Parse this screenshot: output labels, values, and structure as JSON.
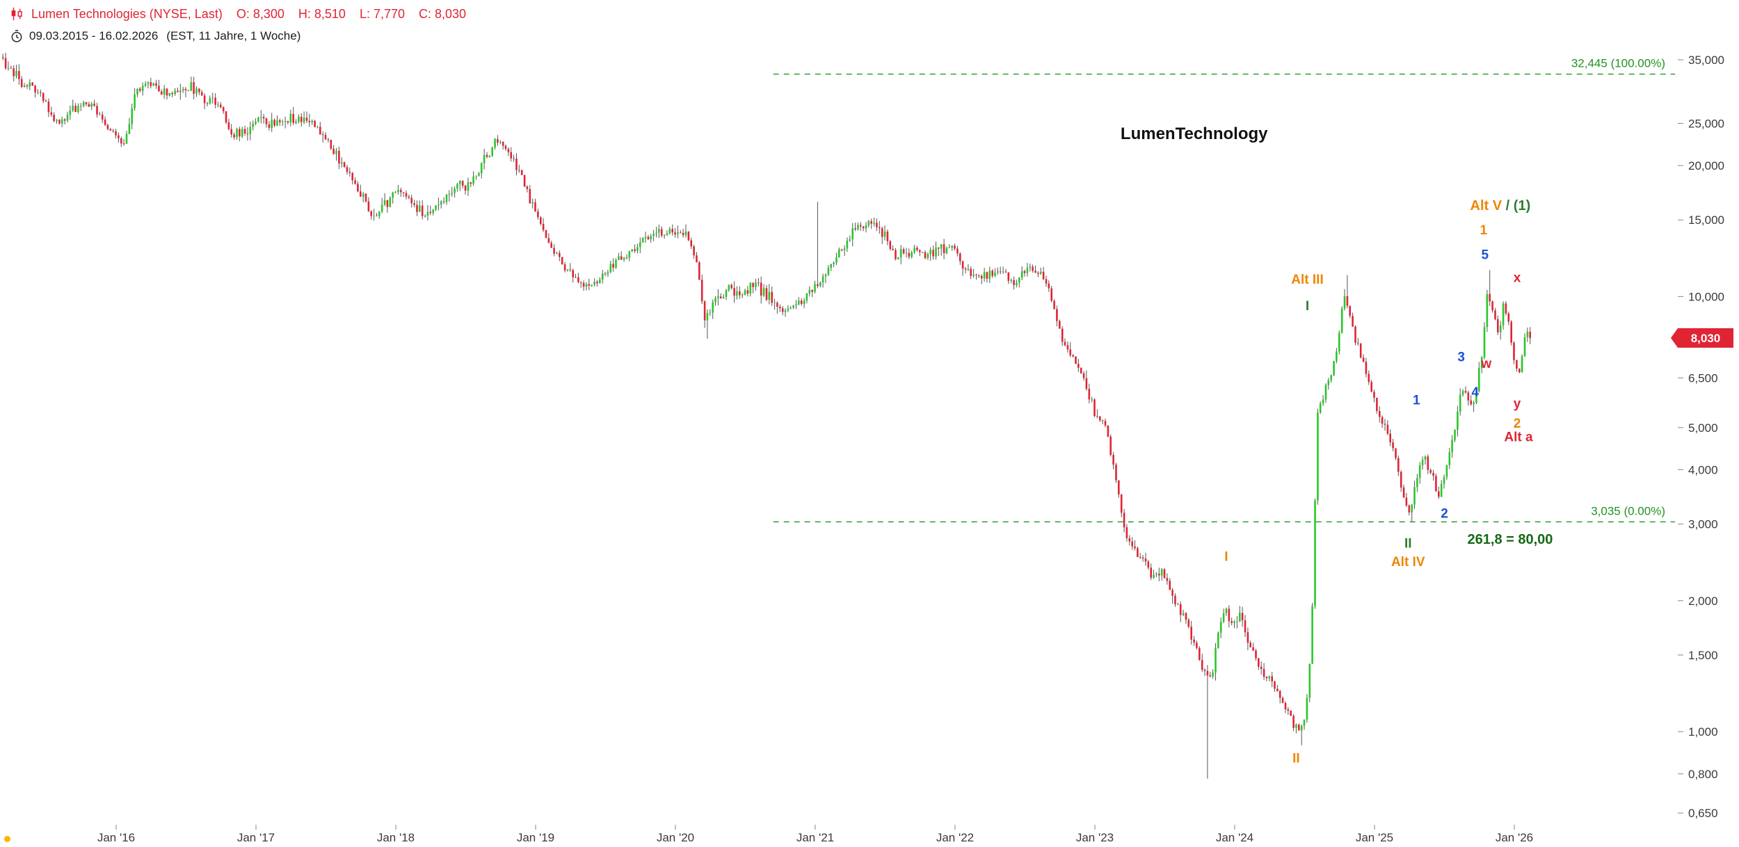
{
  "header": {
    "symbol_line": {
      "name": "Lumen Technologies (NYSE, Last)",
      "ohlc": [
        {
          "k": "O:",
          "v": "8,300"
        },
        {
          "k": "H:",
          "v": "8,510"
        },
        {
          "k": "L:",
          "v": "7,770"
        },
        {
          "k": "C:",
          "v": "8,030"
        }
      ]
    },
    "range_line": {
      "range": "09.03.2015 - 16.02.2026",
      "meta": "(EST, 11 Jahre, 1 Woche)"
    }
  },
  "colors": {
    "up": "#2bc62b",
    "down": "#e02433",
    "wick": "#555555",
    "orange": "#ef8505",
    "blue": "#1e4fd6",
    "red": "#e02433",
    "green": "#2e7d32",
    "darkgreen": "#156915",
    "fib_green": "#209320",
    "black": "#111111",
    "axis_text": "#3a3a3a",
    "badge_text": "#ffffff",
    "dot": "#ffb400"
  },
  "chart_data": {
    "type": "candlestick",
    "interval": "weekly",
    "title": "Lumen Technologies (NYSE)",
    "watermark": "LumenTechnology",
    "y_scale": "log",
    "x_axis": {
      "ticks": [
        {
          "label": "Jan '16",
          "t": 2016.0
        },
        {
          "label": "Jan '17",
          "t": 2017.0
        },
        {
          "label": "Jan '18",
          "t": 2018.0
        },
        {
          "label": "Jan '19",
          "t": 2019.0
        },
        {
          "label": "Jan '20",
          "t": 2020.0
        },
        {
          "label": "Jan '21",
          "t": 2021.0
        },
        {
          "label": "Jan '22",
          "t": 2022.0
        },
        {
          "label": "Jan '23",
          "t": 2023.0
        },
        {
          "label": "Jan '24",
          "t": 2024.0
        },
        {
          "label": "Jan '25",
          "t": 2025.0
        },
        {
          "label": "Jan '26",
          "t": 2026.0
        }
      ]
    },
    "y_axis": {
      "ticks": [
        {
          "label": "35,000",
          "value": 35.0
        },
        {
          "label": "25,000",
          "value": 25.0
        },
        {
          "label": "20,000",
          "value": 20.0
        },
        {
          "label": "15,000",
          "value": 15.0
        },
        {
          "label": "10,000",
          "value": 10.0
        },
        {
          "label": "6,500",
          "value": 6.5
        },
        {
          "label": "5,000",
          "value": 5.0
        },
        {
          "label": "4,000",
          "value": 4.0
        },
        {
          "label": "3,000",
          "value": 3.0
        },
        {
          "label": "2,000",
          "value": 2.0
        },
        {
          "label": "1,500",
          "value": 1.5
        },
        {
          "label": "1,000",
          "value": 1.0
        },
        {
          "label": "0,800",
          "value": 0.8
        },
        {
          "label": "0,650",
          "value": 0.65
        }
      ]
    },
    "last": {
      "open": 8.3,
      "high": 8.51,
      "low": 7.77,
      "close": 8.03,
      "label": "8,030"
    },
    "fib_lines": [
      {
        "price": 32.445,
        "label": "32,445 (100.00%)",
        "t_start": 2020.7
      },
      {
        "price": 3.035,
        "label": "3,035 (0.00%)",
        "t_start": 2020.7
      }
    ],
    "keypoints": [
      [
        2015.19,
        35.5
      ],
      [
        2015.25,
        34.0
      ],
      [
        2015.32,
        31.5
      ],
      [
        2015.4,
        30.5
      ],
      [
        2015.5,
        28.5
      ],
      [
        2015.58,
        24.8
      ],
      [
        2015.67,
        26.5
      ],
      [
        2015.75,
        27.5
      ],
      [
        2015.83,
        28.0
      ],
      [
        2015.92,
        25.5
      ],
      [
        2016.0,
        23.5
      ],
      [
        2016.08,
        22.8
      ],
      [
        2016.17,
        30.0
      ],
      [
        2016.25,
        31.0
      ],
      [
        2016.33,
        30.0
      ],
      [
        2016.42,
        29.0
      ],
      [
        2016.55,
        30.5
      ],
      [
        2016.65,
        28.5
      ],
      [
        2016.78,
        27.5
      ],
      [
        2016.84,
        23.2
      ],
      [
        2016.95,
        24.3
      ],
      [
        2017.05,
        25.8
      ],
      [
        2017.15,
        24.5
      ],
      [
        2017.3,
        26.0
      ],
      [
        2017.42,
        25.0
      ],
      [
        2017.5,
        23.5
      ],
      [
        2017.58,
        21.5
      ],
      [
        2017.67,
        19.5
      ],
      [
        2017.75,
        18.0
      ],
      [
        2017.85,
        15.0
      ],
      [
        2017.95,
        16.3
      ],
      [
        2018.05,
        17.8
      ],
      [
        2018.15,
        16.3
      ],
      [
        2018.25,
        15.2
      ],
      [
        2018.35,
        16.5
      ],
      [
        2018.45,
        18.4
      ],
      [
        2018.55,
        18.0
      ],
      [
        2018.65,
        20.5
      ],
      [
        2018.75,
        23.3
      ],
      [
        2018.82,
        21.5
      ],
      [
        2018.9,
        19.5
      ],
      [
        2019.0,
        16.0
      ],
      [
        2019.1,
        13.5
      ],
      [
        2019.2,
        12.0
      ],
      [
        2019.3,
        11.0
      ],
      [
        2019.4,
        10.4
      ],
      [
        2019.5,
        11.2
      ],
      [
        2019.6,
        12.0
      ],
      [
        2019.7,
        12.6
      ],
      [
        2019.8,
        13.6
      ],
      [
        2019.9,
        14.0
      ],
      [
        2020.0,
        13.8
      ],
      [
        2020.1,
        14.2
      ],
      [
        2020.18,
        11.5
      ],
      [
        2020.23,
        8.9
      ],
      [
        2020.3,
        9.8
      ],
      [
        2020.4,
        10.4
      ],
      [
        2020.5,
        10.1
      ],
      [
        2020.6,
        10.7
      ],
      [
        2020.7,
        9.8
      ],
      [
        2020.8,
        9.2
      ],
      [
        2020.9,
        9.6
      ],
      [
        2021.0,
        10.3
      ],
      [
        2021.1,
        11.5
      ],
      [
        2021.2,
        12.8
      ],
      [
        2021.3,
        14.2
      ],
      [
        2021.4,
        14.9
      ],
      [
        2021.5,
        14.0
      ],
      [
        2021.6,
        12.3
      ],
      [
        2021.7,
        12.8
      ],
      [
        2021.8,
        12.3
      ],
      [
        2021.9,
        12.8
      ],
      [
        2022.0,
        13.0
      ],
      [
        2022.1,
        11.6
      ],
      [
        2022.2,
        11.0
      ],
      [
        2022.33,
        11.4
      ],
      [
        2022.45,
        10.8
      ],
      [
        2022.55,
        11.7
      ],
      [
        2022.63,
        11.3
      ],
      [
        2022.7,
        10.2
      ],
      [
        2022.78,
        8.0
      ],
      [
        2022.85,
        7.3
      ],
      [
        2022.95,
        6.4
      ],
      [
        2023.02,
        5.3
      ],
      [
        2023.1,
        5.0
      ],
      [
        2023.16,
        3.95
      ],
      [
        2023.22,
        3.0
      ],
      [
        2023.3,
        2.6
      ],
      [
        2023.4,
        2.35
      ],
      [
        2023.5,
        2.3
      ],
      [
        2023.58,
        2.0
      ],
      [
        2023.66,
        1.85
      ],
      [
        2023.73,
        1.6
      ],
      [
        2023.8,
        1.35
      ],
      [
        2023.85,
        1.3
      ],
      [
        2023.9,
        1.7
      ],
      [
        2023.95,
        1.92
      ],
      [
        2024.0,
        1.8
      ],
      [
        2024.06,
        1.86
      ],
      [
        2024.12,
        1.6
      ],
      [
        2024.2,
        1.4
      ],
      [
        2024.28,
        1.3
      ],
      [
        2024.36,
        1.18
      ],
      [
        2024.43,
        1.06
      ],
      [
        2024.48,
        0.99
      ],
      [
        2024.53,
        1.12
      ],
      [
        2024.57,
        1.7
      ],
      [
        2024.61,
        5.3
      ],
      [
        2024.65,
        5.9
      ],
      [
        2024.69,
        6.4
      ],
      [
        2024.73,
        7.0
      ],
      [
        2024.77,
        8.5
      ],
      [
        2024.8,
        10.3
      ],
      [
        2024.84,
        9.0
      ],
      [
        2024.88,
        8.0
      ],
      [
        2024.93,
        7.2
      ],
      [
        2024.98,
        6.4
      ],
      [
        2025.03,
        5.6
      ],
      [
        2025.08,
        5.1
      ],
      [
        2025.13,
        4.7
      ],
      [
        2025.18,
        4.1
      ],
      [
        2025.23,
        3.4
      ],
      [
        2025.27,
        3.15
      ],
      [
        2025.33,
        3.9
      ],
      [
        2025.38,
        4.25
      ],
      [
        2025.43,
        3.9
      ],
      [
        2025.48,
        3.5
      ],
      [
        2025.54,
        4.2
      ],
      [
        2025.6,
        5.0
      ],
      [
        2025.64,
        6.1
      ],
      [
        2025.68,
        5.9
      ],
      [
        2025.72,
        5.6
      ],
      [
        2025.76,
        6.4
      ],
      [
        2025.8,
        8.0
      ],
      [
        2025.83,
        10.5
      ],
      [
        2025.87,
        9.0
      ],
      [
        2025.91,
        8.2
      ],
      [
        2025.94,
        9.6
      ],
      [
        2025.98,
        8.6
      ],
      [
        2026.02,
        7.0
      ],
      [
        2026.05,
        6.4
      ],
      [
        2026.08,
        7.5
      ],
      [
        2026.1,
        8.35
      ],
      [
        2026.12,
        8.03
      ]
    ],
    "wick_extremes": [
      {
        "t": 2020.23,
        "low": 8.0
      },
      {
        "t": 2021.02,
        "high": 16.5
      },
      {
        "t": 2023.8,
        "low": 0.78
      },
      {
        "t": 2024.48,
        "low": 0.93
      },
      {
        "t": 2024.8,
        "high": 11.2
      },
      {
        "t": 2025.27,
        "low": 3.04
      },
      {
        "t": 2025.83,
        "high": 11.5
      }
    ],
    "annotations": [
      {
        "name": "watermark",
        "text": "LumenTechnology",
        "t": 2023.71,
        "price": 23.0,
        "color": "black",
        "size": 24
      },
      {
        "name": "alt-v-1",
        "parts": [
          {
            "text": "Alt V ",
            "color": "orange"
          },
          {
            "text": "/ (1)",
            "color": "green"
          }
        ],
        "t": 2025.9,
        "price": 15.8,
        "size": 20
      },
      {
        "name": "wave-1-orange",
        "text": "1",
        "t": 2025.78,
        "price": 13.9,
        "color": "orange"
      },
      {
        "name": "wave-5-blue",
        "text": "5",
        "t": 2025.79,
        "price": 12.2,
        "color": "blue"
      },
      {
        "name": "wave-x-red",
        "text": "x",
        "t": 2026.02,
        "price": 10.8,
        "color": "red"
      },
      {
        "name": "alt-iii",
        "text": "Alt III",
        "t": 2024.52,
        "price": 10.7,
        "color": "orange"
      },
      {
        "name": "wave-I-green",
        "text": "I",
        "t": 2024.52,
        "price": 9.3,
        "color": "green"
      },
      {
        "name": "wave-3-blue",
        "text": "3",
        "t": 2025.62,
        "price": 7.1,
        "color": "blue"
      },
      {
        "name": "wave-w-red",
        "text": "w",
        "t": 2025.8,
        "price": 6.85,
        "color": "red"
      },
      {
        "name": "wave-4-blue",
        "text": "4",
        "t": 2025.72,
        "price": 5.9,
        "color": "blue"
      },
      {
        "name": "wave-1-blue",
        "text": "1",
        "t": 2025.3,
        "price": 5.65,
        "color": "blue"
      },
      {
        "name": "wave-y-red",
        "text": "y",
        "t": 2026.02,
        "price": 5.55,
        "color": "red"
      },
      {
        "name": "wave-2-orange",
        "text": "2",
        "t": 2026.02,
        "price": 5.0,
        "color": "orange"
      },
      {
        "name": "alt-a",
        "text": "Alt a",
        "t": 2026.03,
        "price": 4.65,
        "color": "red"
      },
      {
        "name": "wave-2-blue",
        "text": "2",
        "t": 2025.5,
        "price": 3.1,
        "color": "blue"
      },
      {
        "name": "wave-II-green",
        "text": "II",
        "t": 2025.24,
        "price": 2.65,
        "color": "green"
      },
      {
        "name": "alt-iv",
        "text": "Alt IV",
        "t": 2025.24,
        "price": 2.4,
        "color": "orange"
      },
      {
        "name": "fib-target",
        "text": "261,8 = 80,00",
        "t": 2025.97,
        "price": 2.7,
        "color": "darkgreen",
        "size": 20
      },
      {
        "name": "wave-I-orange",
        "text": "I",
        "t": 2023.94,
        "price": 2.47,
        "color": "orange"
      },
      {
        "name": "wave-II-orange",
        "text": "II",
        "t": 2024.44,
        "price": 0.85,
        "color": "orange"
      }
    ]
  }
}
